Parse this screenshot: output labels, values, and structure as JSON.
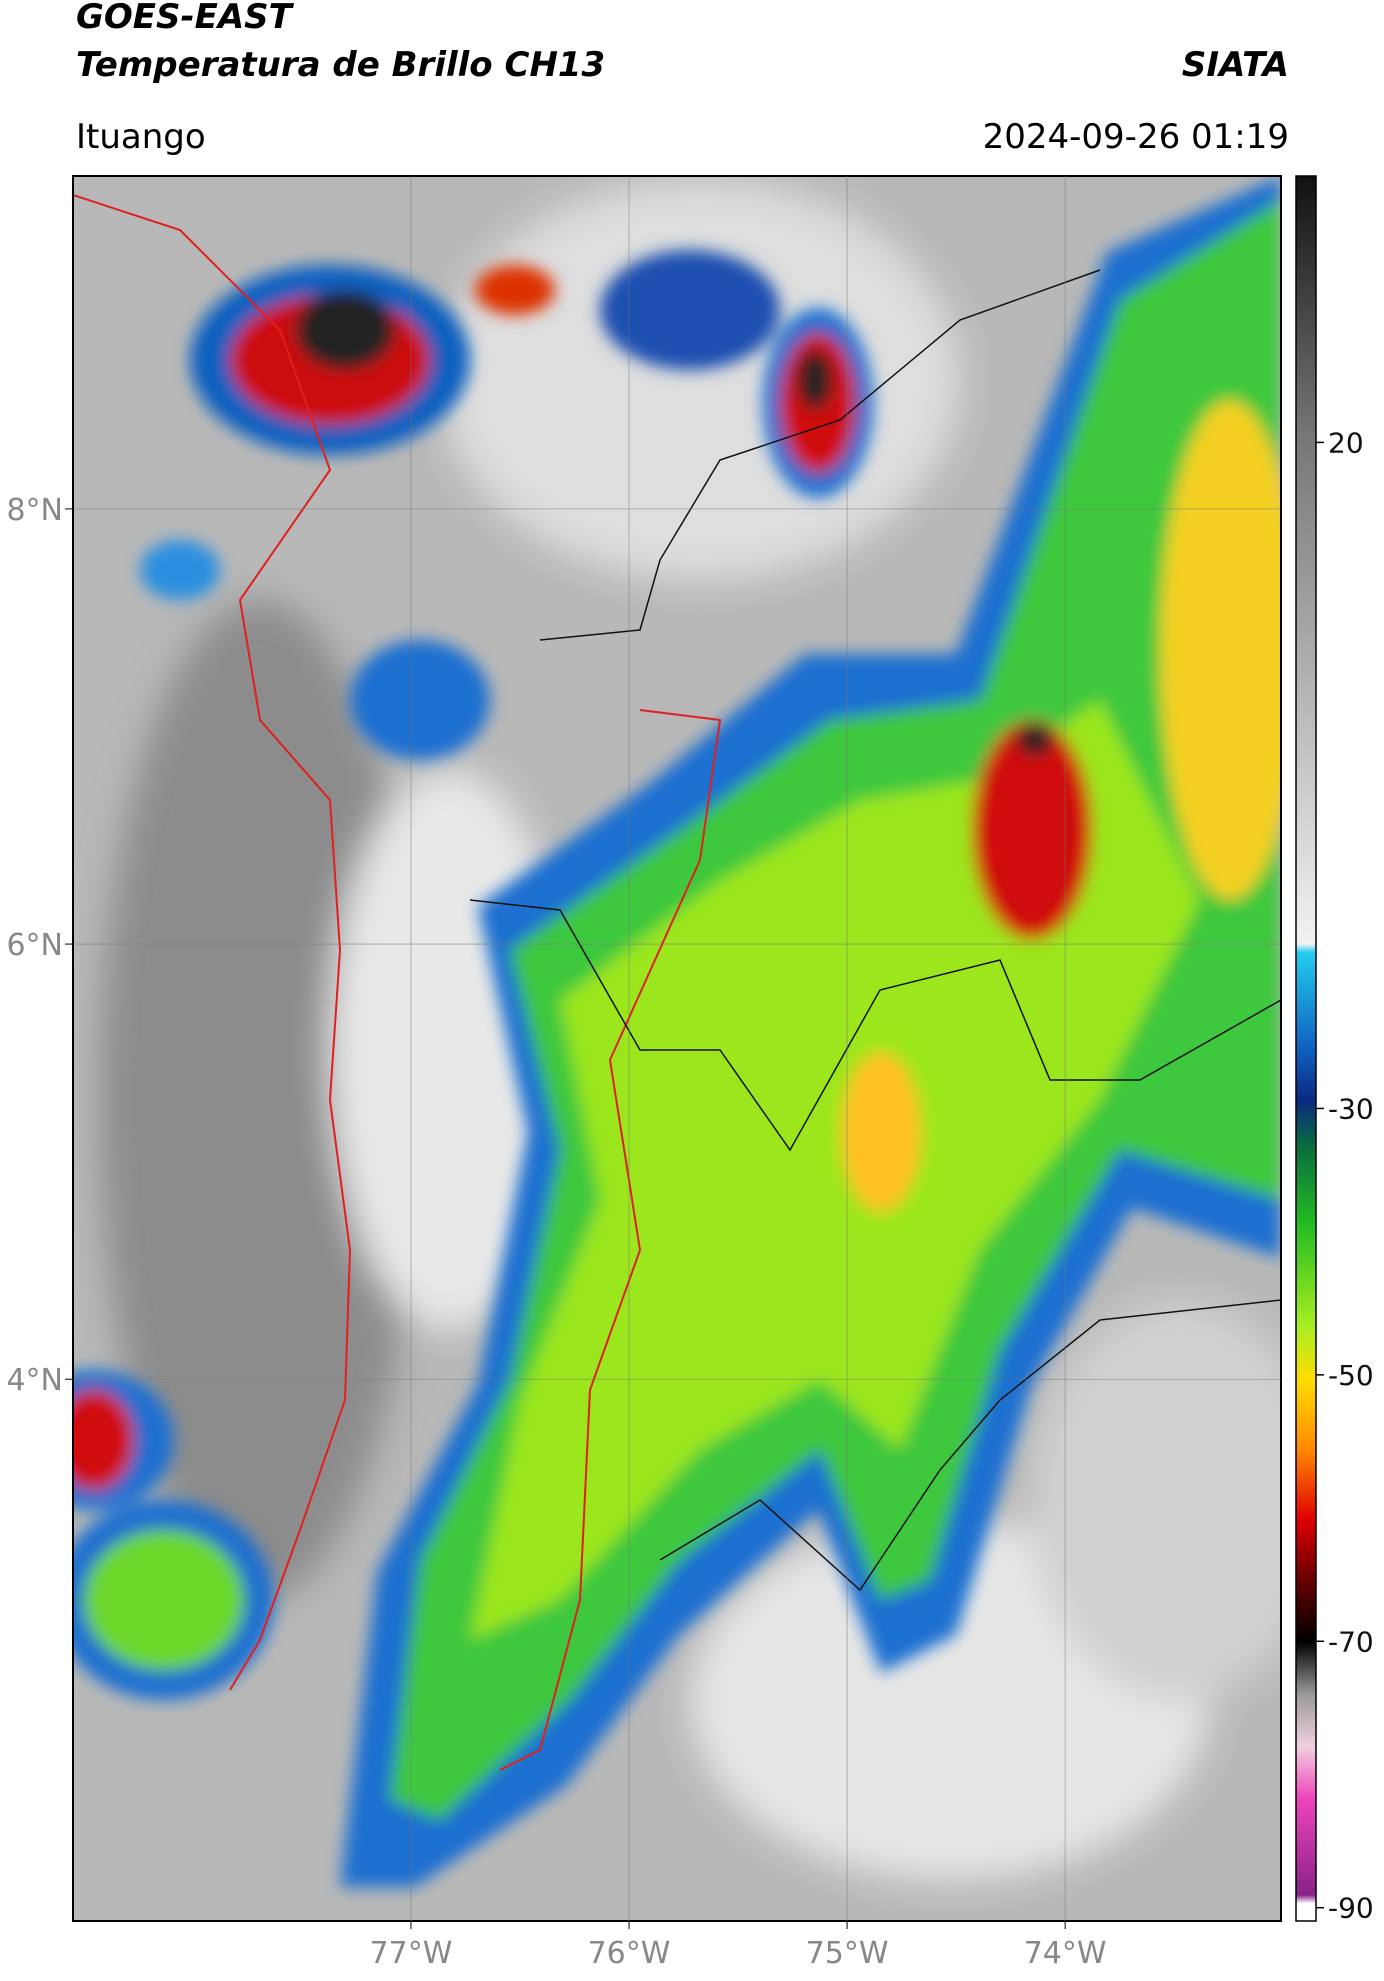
{
  "header": {
    "title_line1": "GOES-EAST",
    "title_line2": "Temperatura de Brillo CH13",
    "source": "SIATA",
    "location": "Ituango",
    "datetime": "2024-09-26 01:19"
  },
  "map": {
    "xlim": [
      -78.55,
      -73.01
    ],
    "ylim": [
      1.51,
      9.53
    ],
    "lon_ticks": [
      {
        "value": -77,
        "label": "77°W"
      },
      {
        "value": -76,
        "label": "76°W"
      },
      {
        "value": -75,
        "label": "75°W"
      },
      {
        "value": -74,
        "label": "74°W"
      }
    ],
    "lat_ticks": [
      {
        "value": 8,
        "label": "8°N"
      },
      {
        "value": 6,
        "label": "6°N"
      },
      {
        "value": 4,
        "label": "4°N"
      }
    ]
  },
  "colorbar": {
    "clim": [
      -91,
      40
    ],
    "ticks": [
      20,
      -30,
      -50,
      -70,
      -90
    ]
  }
}
